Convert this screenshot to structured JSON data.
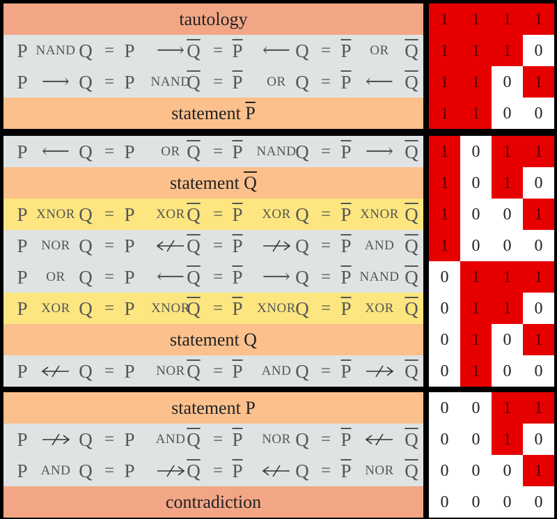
{
  "colors": {
    "background": "#000000",
    "salmon": "#f3a686",
    "peach": "#fbc08c",
    "gray": "#dfe3e3",
    "yellow": "#fde680",
    "true_cell": "#e60000",
    "false_cell": "#ffffff"
  },
  "rows": [
    {
      "type": "full",
      "bg": "salmon",
      "label": "tautology",
      "bits": [
        "1",
        "1",
        "1",
        "1"
      ]
    },
    {
      "type": "eq",
      "bg": "gray",
      "bits": [
        "1",
        "1",
        "1",
        "0"
      ],
      "tokens": [
        {
          "k": "sym",
          "t": "P"
        },
        {
          "k": "op",
          "t": "NAND"
        },
        {
          "k": "sym",
          "t": "Q"
        },
        {
          "k": "eq",
          "t": "="
        },
        {
          "k": "sym",
          "t": "P"
        },
        {
          "k": "ar",
          "t": "⟶"
        },
        {
          "k": "sym",
          "t": "Q",
          "ov": true
        },
        {
          "k": "eq",
          "t": "="
        },
        {
          "k": "sym",
          "t": "P",
          "ov": true
        },
        {
          "k": "ar",
          "t": "⟵"
        },
        {
          "k": "sym",
          "t": "Q"
        },
        {
          "k": "eq",
          "t": "="
        },
        {
          "k": "sym",
          "t": "P",
          "ov": true
        },
        {
          "k": "op",
          "t": "OR"
        },
        {
          "k": "sym",
          "t": "Q",
          "ov": true
        }
      ]
    },
    {
      "type": "eq",
      "bg": "gray",
      "bits": [
        "1",
        "1",
        "0",
        "1"
      ],
      "tokens": [
        {
          "k": "sym",
          "t": "P"
        },
        {
          "k": "ar",
          "t": "⟶"
        },
        {
          "k": "sym",
          "t": "Q"
        },
        {
          "k": "eq",
          "t": "="
        },
        {
          "k": "sym",
          "t": "P"
        },
        {
          "k": "op",
          "t": "NAND"
        },
        {
          "k": "sym",
          "t": "Q",
          "ov": true
        },
        {
          "k": "eq",
          "t": "="
        },
        {
          "k": "sym",
          "t": "P",
          "ov": true
        },
        {
          "k": "op",
          "t": "OR"
        },
        {
          "k": "sym",
          "t": "Q"
        },
        {
          "k": "eq",
          "t": "="
        },
        {
          "k": "sym",
          "t": "P",
          "ov": true
        },
        {
          "k": "ar",
          "t": "⟵"
        },
        {
          "k": "sym",
          "t": "Q",
          "ov": true
        }
      ]
    },
    {
      "type": "full",
      "bg": "peach",
      "label": "statement",
      "var": "P",
      "var_ov": true,
      "bits": [
        "1",
        "1",
        "0",
        "0"
      ]
    },
    {
      "type": "eq",
      "bg": "gray",
      "bits": [
        "1",
        "0",
        "1",
        "1"
      ],
      "tokens": [
        {
          "k": "sym",
          "t": "P"
        },
        {
          "k": "ar",
          "t": "⟵"
        },
        {
          "k": "sym",
          "t": "Q"
        },
        {
          "k": "eq",
          "t": "="
        },
        {
          "k": "sym",
          "t": "P"
        },
        {
          "k": "op",
          "t": "OR"
        },
        {
          "k": "sym",
          "t": "Q",
          "ov": true
        },
        {
          "k": "eq",
          "t": "="
        },
        {
          "k": "sym",
          "t": "P",
          "ov": true
        },
        {
          "k": "op",
          "t": "NAND"
        },
        {
          "k": "sym",
          "t": "Q"
        },
        {
          "k": "eq",
          "t": "="
        },
        {
          "k": "sym",
          "t": "P",
          "ov": true
        },
        {
          "k": "ar",
          "t": "⟶"
        },
        {
          "k": "sym",
          "t": "Q",
          "ov": true
        }
      ]
    },
    {
      "type": "full",
      "bg": "peach",
      "label": "statement",
      "var": "Q",
      "var_ov": true,
      "bits": [
        "1",
        "0",
        "1",
        "0"
      ]
    },
    {
      "type": "eq",
      "bg": "yellow",
      "bits": [
        "1",
        "0",
        "0",
        "1"
      ],
      "tokens": [
        {
          "k": "sym",
          "t": "P"
        },
        {
          "k": "op",
          "t": "XNOR"
        },
        {
          "k": "sym",
          "t": "Q"
        },
        {
          "k": "eq",
          "t": "="
        },
        {
          "k": "sym",
          "t": "P"
        },
        {
          "k": "op",
          "t": "XOR"
        },
        {
          "k": "sym",
          "t": "Q",
          "ov": true
        },
        {
          "k": "eq",
          "t": "="
        },
        {
          "k": "sym",
          "t": "P",
          "ov": true
        },
        {
          "k": "op",
          "t": "XOR"
        },
        {
          "k": "sym",
          "t": "Q"
        },
        {
          "k": "eq",
          "t": "="
        },
        {
          "k": "sym",
          "t": "P",
          "ov": true
        },
        {
          "k": "op",
          "t": "XNOR"
        },
        {
          "k": "sym",
          "t": "Q",
          "ov": true
        }
      ]
    },
    {
      "type": "eq",
      "bg": "gray",
      "bits": [
        "1",
        "0",
        "0",
        "0"
      ],
      "tokens": [
        {
          "k": "sym",
          "t": "P"
        },
        {
          "k": "op",
          "t": "NOR"
        },
        {
          "k": "sym",
          "t": "Q"
        },
        {
          "k": "eq",
          "t": "="
        },
        {
          "k": "sym",
          "t": "P"
        },
        {
          "k": "arr",
          "dir": "left",
          "neg": true
        },
        {
          "k": "sym",
          "t": "Q",
          "ov": true
        },
        {
          "k": "eq",
          "t": "="
        },
        {
          "k": "sym",
          "t": "P",
          "ov": true
        },
        {
          "k": "arr",
          "dir": "right",
          "neg": true
        },
        {
          "k": "sym",
          "t": "Q"
        },
        {
          "k": "eq",
          "t": "="
        },
        {
          "k": "sym",
          "t": "P",
          "ov": true
        },
        {
          "k": "op",
          "t": "AND"
        },
        {
          "k": "sym",
          "t": "Q",
          "ov": true
        }
      ]
    },
    {
      "type": "eq",
      "bg": "gray",
      "bits": [
        "0",
        "1",
        "1",
        "1"
      ],
      "tokens": [
        {
          "k": "sym",
          "t": "P"
        },
        {
          "k": "op",
          "t": "OR"
        },
        {
          "k": "sym",
          "t": "Q"
        },
        {
          "k": "eq",
          "t": "="
        },
        {
          "k": "sym",
          "t": "P"
        },
        {
          "k": "ar",
          "t": "⟵"
        },
        {
          "k": "sym",
          "t": "Q",
          "ov": true
        },
        {
          "k": "eq",
          "t": "="
        },
        {
          "k": "sym",
          "t": "P",
          "ov": true
        },
        {
          "k": "ar",
          "t": "⟶"
        },
        {
          "k": "sym",
          "t": "Q"
        },
        {
          "k": "eq",
          "t": "="
        },
        {
          "k": "sym",
          "t": "P",
          "ov": true
        },
        {
          "k": "op",
          "t": "NAND"
        },
        {
          "k": "sym",
          "t": "Q",
          "ov": true
        }
      ]
    },
    {
      "type": "eq",
      "bg": "yellow",
      "bits": [
        "0",
        "1",
        "1",
        "0"
      ],
      "tokens": [
        {
          "k": "sym",
          "t": "P"
        },
        {
          "k": "op",
          "t": "XOR"
        },
        {
          "k": "sym",
          "t": "Q"
        },
        {
          "k": "eq",
          "t": "="
        },
        {
          "k": "sym",
          "t": "P"
        },
        {
          "k": "op",
          "t": "XNOR"
        },
        {
          "k": "sym",
          "t": "Q",
          "ov": true
        },
        {
          "k": "eq",
          "t": "="
        },
        {
          "k": "sym",
          "t": "P",
          "ov": true
        },
        {
          "k": "op",
          "t": "XNOR"
        },
        {
          "k": "sym",
          "t": "Q"
        },
        {
          "k": "eq",
          "t": "="
        },
        {
          "k": "sym",
          "t": "P",
          "ov": true
        },
        {
          "k": "op",
          "t": "XOR"
        },
        {
          "k": "sym",
          "t": "Q",
          "ov": true
        }
      ]
    },
    {
      "type": "full",
      "bg": "peach",
      "label": "statement",
      "var": "Q",
      "var_ov": false,
      "bits": [
        "0",
        "1",
        "0",
        "1"
      ]
    },
    {
      "type": "eq",
      "bg": "gray",
      "bits": [
        "0",
        "1",
        "0",
        "0"
      ],
      "tokens": [
        {
          "k": "sym",
          "t": "P"
        },
        {
          "k": "arr",
          "dir": "left",
          "neg": true
        },
        {
          "k": "sym",
          "t": "Q"
        },
        {
          "k": "eq",
          "t": "="
        },
        {
          "k": "sym",
          "t": "P"
        },
        {
          "k": "op",
          "t": "NOR"
        },
        {
          "k": "sym",
          "t": "Q",
          "ov": true
        },
        {
          "k": "eq",
          "t": "="
        },
        {
          "k": "sym",
          "t": "P",
          "ov": true
        },
        {
          "k": "op",
          "t": "AND"
        },
        {
          "k": "sym",
          "t": "Q"
        },
        {
          "k": "eq",
          "t": "="
        },
        {
          "k": "sym",
          "t": "P",
          "ov": true
        },
        {
          "k": "arr",
          "dir": "right",
          "neg": true
        },
        {
          "k": "sym",
          "t": "Q",
          "ov": true
        }
      ]
    },
    {
      "type": "full",
      "bg": "peach",
      "label": "statement",
      "var": "P",
      "var_ov": false,
      "bits": [
        "0",
        "0",
        "1",
        "1"
      ]
    },
    {
      "type": "eq",
      "bg": "gray",
      "bits": [
        "0",
        "0",
        "1",
        "0"
      ],
      "tokens": [
        {
          "k": "sym",
          "t": "P"
        },
        {
          "k": "arr",
          "dir": "right",
          "neg": true
        },
        {
          "k": "sym",
          "t": "Q"
        },
        {
          "k": "eq",
          "t": "="
        },
        {
          "k": "sym",
          "t": "P"
        },
        {
          "k": "op",
          "t": "AND"
        },
        {
          "k": "sym",
          "t": "Q",
          "ov": true
        },
        {
          "k": "eq",
          "t": "="
        },
        {
          "k": "sym",
          "t": "P",
          "ov": true
        },
        {
          "k": "op",
          "t": "NOR"
        },
        {
          "k": "sym",
          "t": "Q"
        },
        {
          "k": "eq",
          "t": "="
        },
        {
          "k": "sym",
          "t": "P",
          "ov": true
        },
        {
          "k": "arr",
          "dir": "left",
          "neg": true
        },
        {
          "k": "sym",
          "t": "Q",
          "ov": true
        }
      ]
    },
    {
      "type": "eq",
      "bg": "gray",
      "bits": [
        "0",
        "0",
        "0",
        "1"
      ],
      "tokens": [
        {
          "k": "sym",
          "t": "P"
        },
        {
          "k": "op",
          "t": "AND"
        },
        {
          "k": "sym",
          "t": "Q"
        },
        {
          "k": "eq",
          "t": "="
        },
        {
          "k": "sym",
          "t": "P"
        },
        {
          "k": "arr",
          "dir": "right",
          "neg": true
        },
        {
          "k": "sym",
          "t": "Q",
          "ov": true
        },
        {
          "k": "eq",
          "t": "="
        },
        {
          "k": "sym",
          "t": "P",
          "ov": true
        },
        {
          "k": "arr",
          "dir": "left",
          "neg": true
        },
        {
          "k": "sym",
          "t": "Q"
        },
        {
          "k": "eq",
          "t": "="
        },
        {
          "k": "sym",
          "t": "P",
          "ov": true
        },
        {
          "k": "op",
          "t": "NOR"
        },
        {
          "k": "sym",
          "t": "Q",
          "ov": true
        }
      ]
    },
    {
      "type": "full",
      "bg": "salmon",
      "label": "contradiction",
      "bits": [
        "0",
        "0",
        "0",
        "0"
      ]
    }
  ]
}
